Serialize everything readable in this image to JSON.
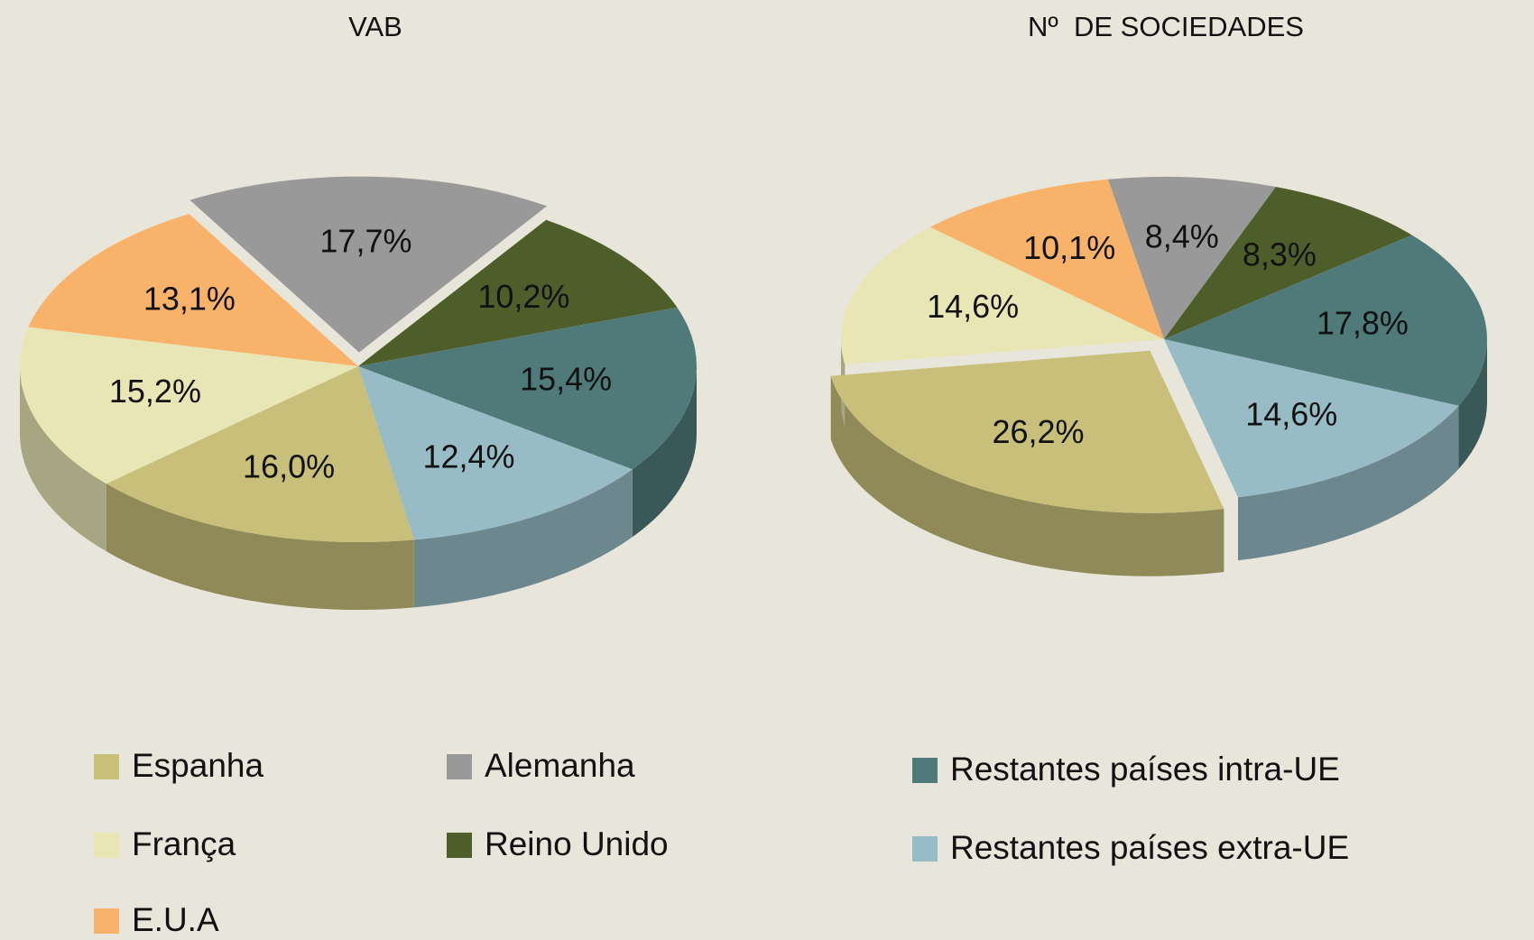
{
  "chart_data": [
    {
      "type": "pie",
      "title": "VAB",
      "categories": [
        "Espanha",
        "França",
        "E.U.A",
        "Alemanha",
        "Reino Unido",
        "Restantes países intra-UE",
        "Restantes países extra-UE"
      ],
      "colors": [
        "#c8bf7a",
        "#e8e6b5",
        "#f9b26a",
        "#999999",
        "#4e5e2a",
        "#507a7a",
        "#97bcc5"
      ],
      "values": [
        16.0,
        15.2,
        13.1,
        17.7,
        10.2,
        15.4,
        12.4
      ],
      "value_labels": [
        "16,0%",
        "15,2%",
        "13,1%",
        "17,7%",
        "10,2%",
        "15,4%",
        "12,4%"
      ]
    },
    {
      "type": "pie",
      "title": "Nº  DE SOCIEDADES",
      "values": [
        26.2,
        14.6,
        10.1,
        8.4,
        8.3,
        17.8,
        14.6
      ],
      "value_labels": [
        "26,2%",
        "14,6%",
        "10,1%",
        "8,4%",
        "8,3%",
        "17,8%",
        "14,6%"
      ]
    }
  ]
}
